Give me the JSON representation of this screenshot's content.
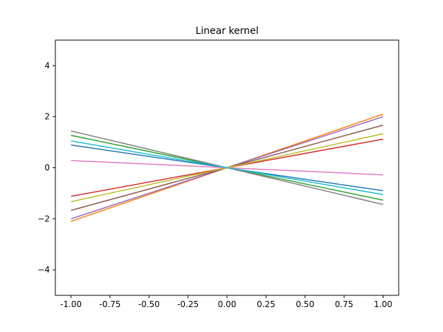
{
  "chart_data": {
    "type": "line",
    "title": "Linear kernel",
    "xlabel": "",
    "ylabel": "",
    "xlim": [
      -1.1,
      1.1
    ],
    "ylim": [
      -5,
      5
    ],
    "grid": false,
    "x": [
      -1.0,
      1.0
    ],
    "xticks": [
      "-1.00",
      "-0.75",
      "-0.50",
      "-0.25",
      "0.00",
      "0.25",
      "0.50",
      "0.75",
      "1.00"
    ],
    "xtick_values": [
      -1.0,
      -0.75,
      -0.5,
      -0.25,
      0.0,
      0.25,
      0.5,
      0.75,
      1.0
    ],
    "yticks": [
      "-4",
      "-2",
      "0",
      "2",
      "4"
    ],
    "ytick_values": [
      -4,
      -2,
      0,
      2,
      4
    ],
    "series": [
      {
        "color": "#1f77b4",
        "values": [
          0.89,
          -0.9
        ]
      },
      {
        "color": "#ff7f0e",
        "values": [
          -2.1,
          2.1
        ]
      },
      {
        "color": "#2ca02c",
        "values": [
          1.27,
          -1.27
        ]
      },
      {
        "color": "#d62728",
        "values": [
          -1.12,
          1.12
        ]
      },
      {
        "color": "#9467bd",
        "values": [
          -2.0,
          2.0
        ]
      },
      {
        "color": "#8c564b",
        "values": [
          -1.67,
          1.67
        ]
      },
      {
        "color": "#e377c2",
        "values": [
          0.28,
          -0.28
        ]
      },
      {
        "color": "#7f7f7f",
        "values": [
          1.44,
          -1.44
        ]
      },
      {
        "color": "#bcbd22",
        "values": [
          -1.33,
          1.33
        ]
      },
      {
        "color": "#17becf",
        "values": [
          1.05,
          -1.05
        ]
      }
    ]
  }
}
